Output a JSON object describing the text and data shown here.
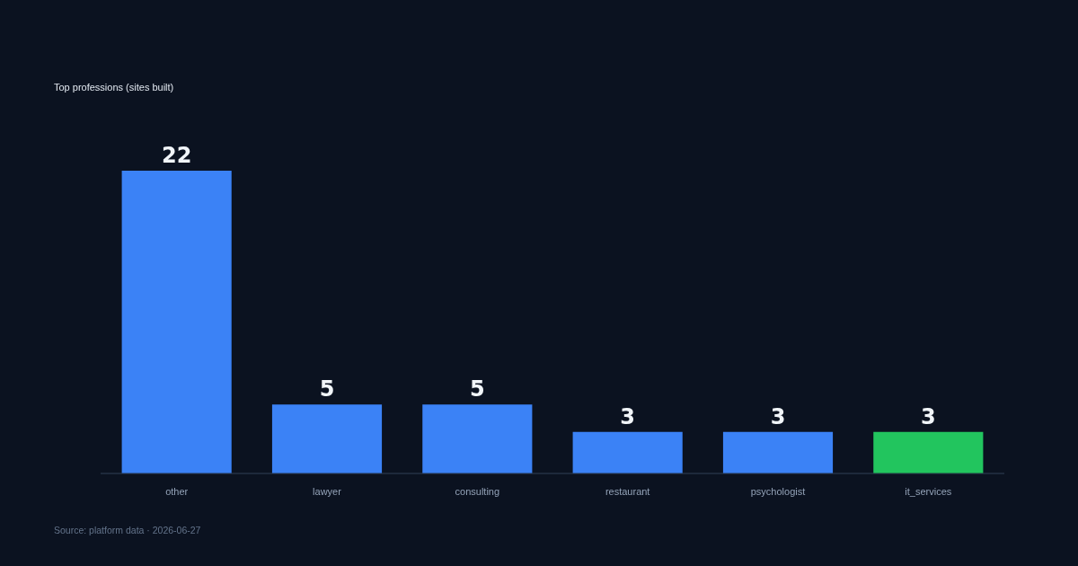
{
  "chart_data": {
    "type": "bar",
    "subtitle": "Top professions (sites built)",
    "categories": [
      "other",
      "lawyer",
      "consulting",
      "restaurant",
      "psychologist",
      "it_services"
    ],
    "values": [
      22,
      5,
      5,
      3,
      3,
      3
    ],
    "colors": [
      "#3b82f6",
      "#3b82f6",
      "#3b82f6",
      "#3b82f6",
      "#3b82f6",
      "#22c55e"
    ],
    "data_labels": true,
    "tick_labels": "x",
    "annotations": [
      "Source: platform data · 2026-06-27"
    ]
  }
}
